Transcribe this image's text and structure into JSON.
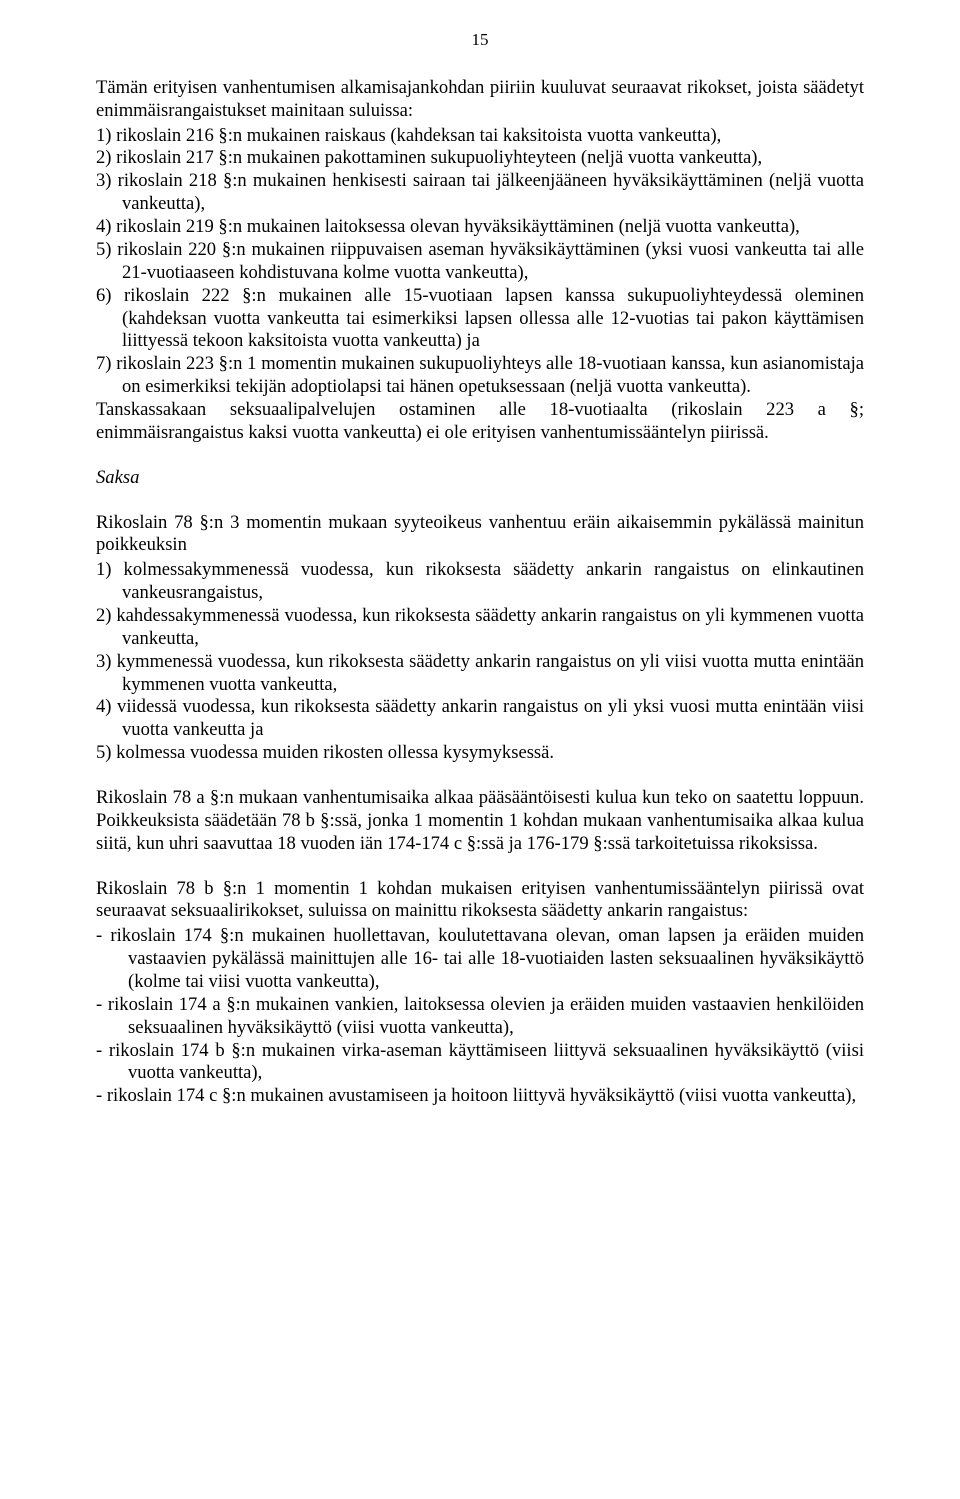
{
  "page_number": "15",
  "intro": "Tämän erityisen vanhentumisen alkamisajankohdan piiriin kuuluvat seuraavat rikokset, joista säädetyt enimmäisrangaistukset mainitaan suluissa:",
  "list1": [
    "1)  rikoslain 216 §:n mukainen raiskaus (kahdeksan tai kaksitoista vuotta vankeutta),",
    "2)  rikoslain 217 §:n mukainen pakottaminen sukupuoliyhteyteen (neljä vuotta vankeutta),",
    "3)  rikoslain 218 §:n mukainen henkisesti sairaan tai jälkeenjääneen hyväksikäyttäminen (neljä vuotta vankeutta),",
    "4)  rikoslain 219 §:n mukainen laitoksessa olevan hyväksikäyttäminen (neljä vuotta vankeutta),",
    "5)  rikoslain 220 §:n mukainen riippuvaisen aseman hyväksikäyttäminen (yksi vuosi vankeutta tai alle 21-vuotiaaseen kohdistuvana kolme vuotta vankeutta),",
    "6)  rikoslain 222 §:n mukainen alle 15-vuotiaan lapsen kanssa sukupuoliyhteydessä oleminen (kahdeksan vuotta vankeutta tai esimerkiksi lapsen ollessa alle 12-vuotias tai pakon käyttämisen liittyessä tekoon kaksitoista vuotta vankeutta) ja",
    "7)  rikoslain 223 §:n 1 momentin mukainen sukupuoliyhteys alle 18-vuotiaan kanssa, kun asianomistaja on esimerkiksi tekijän adoptiolapsi tai hänen opetuksessaan (neljä vuotta vankeutta)."
  ],
  "after_list1": "Tanskassakaan seksuaalipalvelujen ostaminen alle 18-vuotiaalta (rikoslain 223 a §; enimmäisrangaistus kaksi vuotta vankeutta) ei ole erityisen vanhentumissääntelyn piirissä.",
  "section_heading": "Saksa",
  "p2": "Rikoslain 78 §:n 3 momentin mukaan syyteoikeus vanhentuu eräin aikaisemmin pykälässä mainitun poikkeuksin",
  "list2": [
    "1)  kolmessakymmenessä vuodessa, kun rikoksesta säädetty ankarin rangaistus on elinkautinen vankeusrangaistus,",
    "2)  kahdessakymmenessä vuodessa, kun rikoksesta säädetty ankarin rangaistus on yli kymmenen vuotta vankeutta,",
    "3)  kymmenessä vuodessa, kun rikoksesta säädetty ankarin rangaistus on yli viisi vuotta mutta enintään kymmenen vuotta vankeutta,",
    "4)  viidessä vuodessa, kun rikoksesta säädetty ankarin rangaistus on yli yksi vuosi mutta enintään viisi vuotta vankeutta ja",
    "5)  kolmessa vuodessa muiden rikosten ollessa kysymyksessä."
  ],
  "p3": "Rikoslain 78 a §:n mukaan vanhentumisaika alkaa pääsääntöisesti kulua kun teko on saatettu loppuun. Poikkeuksista säädetään 78 b §:ssä, jonka 1 momentin 1 kohdan mukaan vanhentumisaika alkaa kulua siitä, kun uhri saavuttaa 18 vuoden iän 174-174 c §:ssä ja 176-179 §:ssä tarkoitetuissa rikoksissa.",
  "p4": "Rikoslain 78 b §:n 1 momentin 1 kohdan mukaisen erityisen vanhentumissääntelyn piirissä ovat seuraavat seksuaalirikokset, suluissa on mainittu rikoksesta säädetty ankarin rangaistus:",
  "list3": [
    "-    rikoslain 174 §:n mukainen huollettavan, koulutettavana olevan, oman lapsen ja eräiden muiden vastaavien pykälässä mainittujen alle 16- tai alle 18-vuotiaiden lasten seksuaalinen hyväksikäyttö (kolme tai viisi vuotta vankeutta),",
    "-    rikoslain 174 a §:n mukainen vankien, laitoksessa olevien ja eräiden muiden vastaavien henkilöiden seksuaalinen hyväksikäyttö (viisi vuotta vankeutta),",
    "-    rikoslain 174 b §:n mukainen virka-aseman käyttämiseen liittyvä seksuaalinen hyväksikäyttö (viisi vuotta vankeutta),",
    "-    rikoslain 174 c §:n mukainen avustamiseen ja hoitoon liittyvä hyväksikäyttö (viisi vuotta vankeutta),"
  ]
}
